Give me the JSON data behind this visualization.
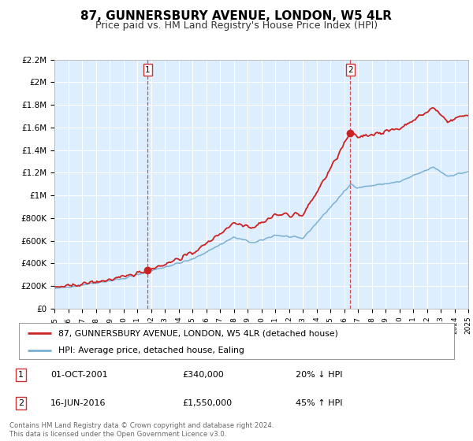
{
  "title": "87, GUNNERSBURY AVENUE, LONDON, W5 4LR",
  "subtitle": "Price paid vs. HM Land Registry's House Price Index (HPI)",
  "title_fontsize": 11,
  "subtitle_fontsize": 9,
  "background_color": "#ffffff",
  "plot_bg_color": "#ddeeff",
  "grid_color": "#ffffff",
  "ylim": [
    0,
    2200000
  ],
  "xlim_start": 1995,
  "xlim_end": 2025,
  "yticks": [
    0,
    200000,
    400000,
    600000,
    800000,
    1000000,
    1200000,
    1400000,
    1600000,
    1800000,
    2000000,
    2200000
  ],
  "ytick_labels": [
    "£0",
    "£200K",
    "£400K",
    "£600K",
    "£800K",
    "£1M",
    "£1.2M",
    "£1.4M",
    "£1.6M",
    "£1.8M",
    "£2M",
    "£2.2M"
  ],
  "xticks": [
    1995,
    1996,
    1997,
    1998,
    1999,
    2000,
    2001,
    2002,
    2003,
    2004,
    2005,
    2006,
    2007,
    2008,
    2009,
    2010,
    2011,
    2012,
    2013,
    2014,
    2015,
    2016,
    2017,
    2018,
    2019,
    2020,
    2021,
    2022,
    2023,
    2024,
    2025
  ],
  "hpi_color": "#7ab0d4",
  "property_color": "#cc2222",
  "marker_color": "#cc2222",
  "sale1_x": 2001.75,
  "sale1_y": 340000,
  "sale2_x": 2016.45,
  "sale2_y": 1550000,
  "vline_color": "#cc3333",
  "legend_line1": "87, GUNNERSBURY AVENUE, LONDON, W5 4LR (detached house)",
  "legend_line2": "HPI: Average price, detached house, Ealing",
  "annotation1_num": "1",
  "annotation1_date": "01-OCT-2001",
  "annotation1_price": "£340,000",
  "annotation1_hpi": "20% ↓ HPI",
  "annotation2_num": "2",
  "annotation2_date": "16-JUN-2016",
  "annotation2_price": "£1,550,000",
  "annotation2_hpi": "45% ↑ HPI",
  "footer": "Contains HM Land Registry data © Crown copyright and database right 2024.\nThis data is licensed under the Open Government Licence v3.0."
}
